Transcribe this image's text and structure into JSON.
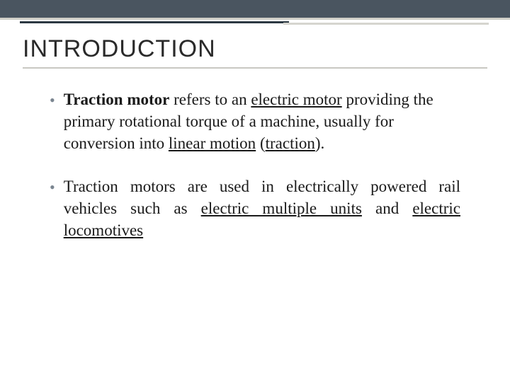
{
  "colors": {
    "top_band": "#4a5560",
    "top_band_border": "#d0cfc8",
    "accent_dark": "#2b3842",
    "accent_light": "#d6d5cf",
    "title_text": "#2a2a2a",
    "title_underline": "#c9c8c2",
    "bullet_marker": "#7a8590",
    "body_text": "#1a1a1a",
    "background": "#ffffff"
  },
  "typography": {
    "title_font": "Arial",
    "title_size_pt": 26,
    "body_font": "Georgia",
    "body_size_pt": 17
  },
  "title": "INTRODUCTION",
  "bullets": [
    {
      "segments": [
        {
          "text": "Traction motor",
          "bold": true,
          "underline": false
        },
        {
          "text": " refers to an ",
          "bold": false,
          "underline": false
        },
        {
          "text": "electric motor",
          "bold": false,
          "underline": true
        },
        {
          "text": " providing the primary rotational torque of a machine, usually for conversion into ",
          "bold": false,
          "underline": false
        },
        {
          "text": "linear motion",
          "bold": false,
          "underline": true
        },
        {
          "text": " (",
          "bold": false,
          "underline": false
        },
        {
          "text": "traction",
          "bold": false,
          "underline": true
        },
        {
          "text": ").",
          "bold": false,
          "underline": false
        }
      ],
      "justify": false
    },
    {
      "segments": [
        {
          "text": "Traction motors are used in electrically powered rail vehicles such as ",
          "bold": false,
          "underline": false
        },
        {
          "text": "electric multiple units",
          "bold": false,
          "underline": true
        },
        {
          "text": " and ",
          "bold": false,
          "underline": false
        },
        {
          "text": "electric locomotives",
          "bold": false,
          "underline": true
        }
      ],
      "justify": true
    }
  ]
}
